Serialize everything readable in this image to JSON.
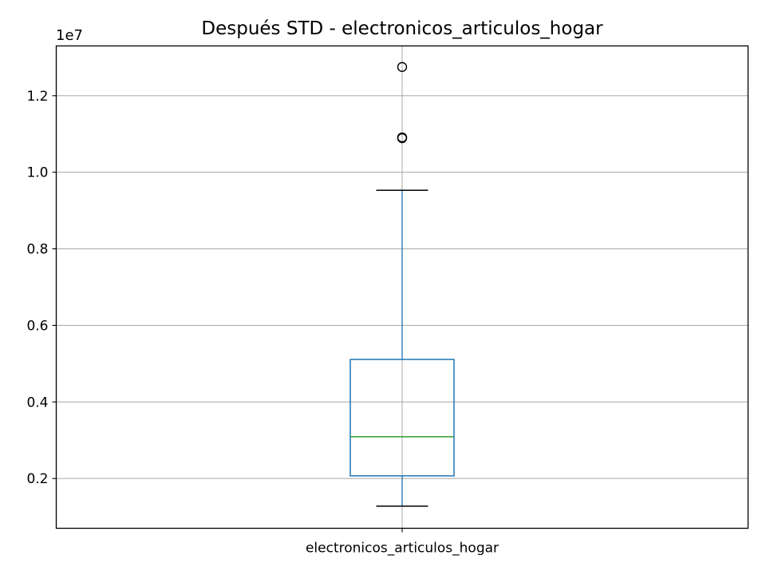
{
  "chart_data": {
    "type": "box",
    "title": "Después STD - electronicos_articulos_hogar",
    "xlabel": "",
    "ylabel": "",
    "y_offset_label": "1e7",
    "categories": [
      "electronicos_articulos_hogar"
    ],
    "ylim": [
      0.07,
      1.33
    ],
    "yticks": [
      0.2,
      0.4,
      0.6,
      0.8,
      1.0,
      1.2
    ],
    "ytick_labels": [
      "0.2",
      "0.4",
      "0.6",
      "0.8",
      "1.0",
      "1.2"
    ],
    "grid": true,
    "boxes": [
      {
        "name": "electronicos_articulos_hogar",
        "whisker_low": 0.128,
        "q1": 0.207,
        "median": 0.309,
        "q3": 0.511,
        "whisker_high": 0.953,
        "outliers": [
          1.089,
          1.091,
          1.275
        ]
      }
    ],
    "colors": {
      "box": "#1f77b4",
      "median": "#2ca02c",
      "whisker_cap": "#000000",
      "grid": "#b0b0b0",
      "outlier": "#000000"
    }
  }
}
